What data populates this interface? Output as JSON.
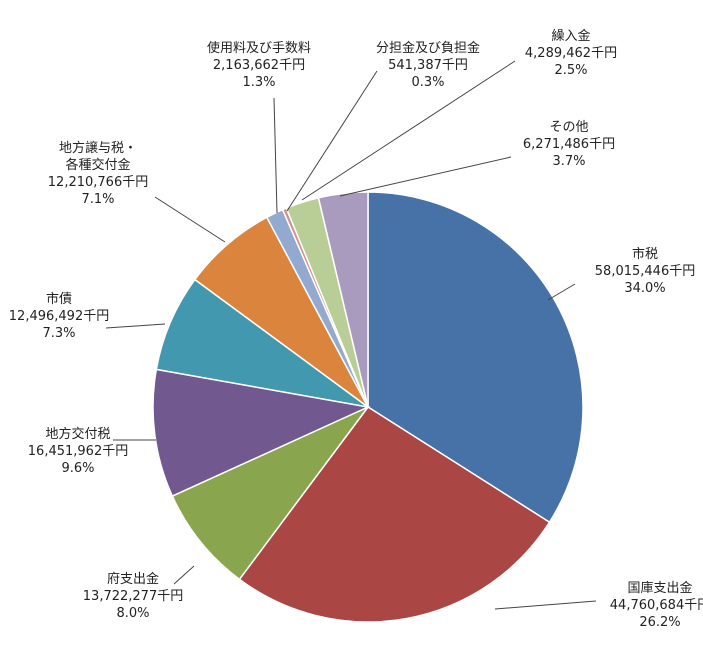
{
  "chart_data": {
    "type": "pie",
    "title": "",
    "start_angle_deg": 0,
    "direction": "clockwise",
    "unit": "千円",
    "slices": [
      {
        "label": "市税",
        "amount": "58,015,446千円",
        "percent": "34.0%",
        "value": 34.0,
        "color": "#4672a8"
      },
      {
        "label": "国庫支出金",
        "amount": "44,760,684千円",
        "percent": "26.2%",
        "value": 26.2,
        "color": "#aa4644"
      },
      {
        "label": "府支出金",
        "amount": "13,722,277千円",
        "percent": "8.0%",
        "value": 8.0,
        "color": "#89a54e"
      },
      {
        "label": "地方交付税",
        "amount": "16,451,962千円",
        "percent": "9.6%",
        "value": 9.6,
        "color": "#71588f"
      },
      {
        "label": "市債",
        "amount": "12,496,492千円",
        "percent": "7.3%",
        "value": 7.3,
        "color": "#4298af"
      },
      {
        "label_lines": [
          "地方譲与税・",
          "各種交付金"
        ],
        "amount": "12,210,766千円",
        "percent": "7.1%",
        "value": 7.1,
        "color": "#db843d"
      },
      {
        "label": "使用料及び手数料",
        "amount": "2,163,662千円",
        "percent": "1.3%",
        "value": 1.3,
        "color": "#93a9cf"
      },
      {
        "label": "分担金及び負担金",
        "amount": "541,387千円",
        "percent": "0.3%",
        "value": 0.3,
        "color": "#d19392"
      },
      {
        "label": "繰入金",
        "amount": "4,289,462千円",
        "percent": "2.5%",
        "value": 2.5,
        "color": "#b9cd96"
      },
      {
        "label": "その他",
        "amount": "6,271,486千円",
        "percent": "3.7%",
        "value": 3.7,
        "color": "#a99bbd"
      }
    ]
  }
}
